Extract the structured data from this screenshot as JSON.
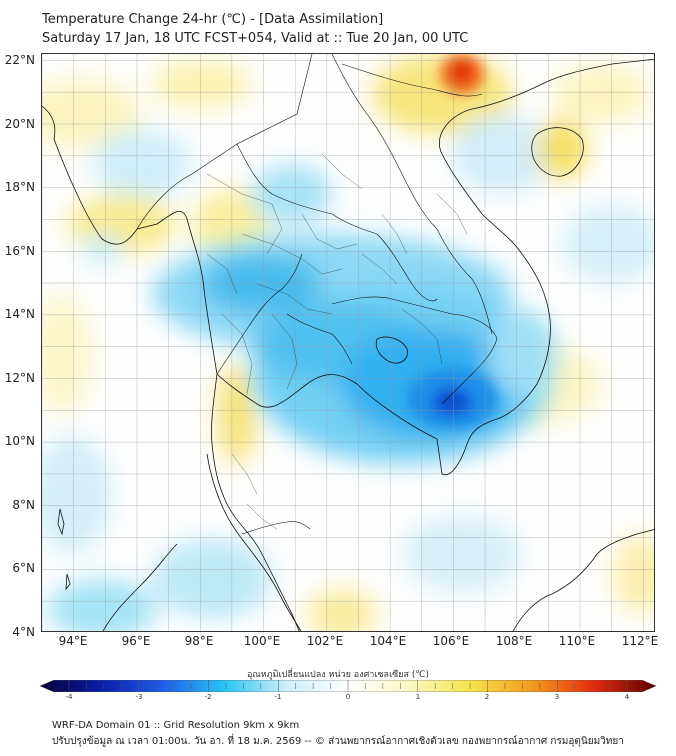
{
  "header": {
    "title": "Temperature Change 24-hr (℃) - [Data Assimilation]",
    "subtitle": "Saturday 17 Jan, 18 UTC FCST+054, Valid at :: Tue 20 Jan, 00 UTC"
  },
  "map": {
    "lat_labels": [
      "22°N",
      "20°N",
      "18°N",
      "16°N",
      "14°N",
      "12°N",
      "10°N",
      "8°N",
      "6°N",
      "4°N"
    ],
    "lon_labels": [
      "94°E",
      "96°E",
      "98°E",
      "100°E",
      "102°E",
      "104°E",
      "106°E",
      "108°E",
      "110°E",
      "112°E"
    ],
    "lon_range": [
      93,
      112.4
    ],
    "lat_range": [
      4,
      22.2
    ]
  },
  "colorbar": {
    "label": "อุณหภูมิเปลี่ยนแปลง หน่วย องศาเซลเซียส (℃)",
    "ticks": [
      "-4",
      "-3",
      "-2",
      "-1",
      "0",
      "1",
      "2",
      "3",
      "4"
    ],
    "range": [
      -4,
      4
    ],
    "stops": [
      "#08003a",
      "#0a1fa8",
      "#1f5ee8",
      "#27c4f4",
      "#cdeefa",
      "#ffffff",
      "#fbf7c2",
      "#f6e24a",
      "#f39a1e",
      "#e32b0e",
      "#5a0000"
    ]
  },
  "footer": {
    "line1": "WRF-DA Domain 01 :: Grid Resolution 9km x 9km",
    "line2": "ปรับปรุงข้อมูล ณ เวลา 01:00น. วัน อา. ที่ 18 ม.ค. 2569 -- © ส่วนพยากรณ์อากาศเชิงตัวเลข กองพยากรณ์อากาศ กรมอุตุนิยมวิทยา"
  }
}
